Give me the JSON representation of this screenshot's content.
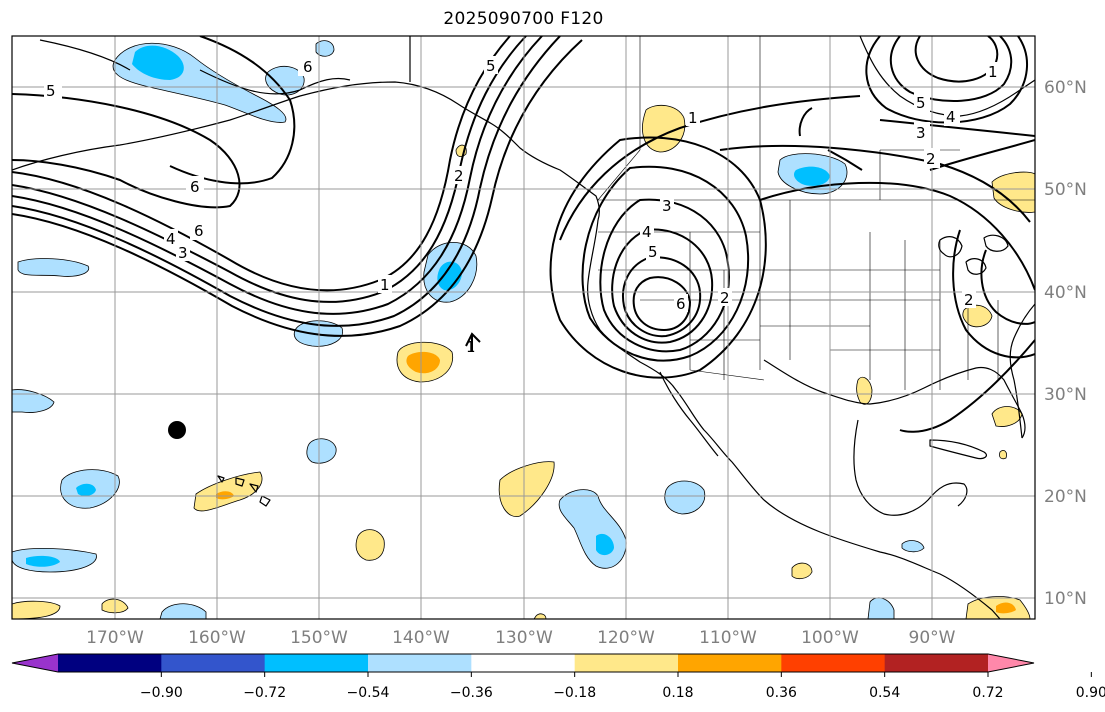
{
  "title": "2025090700 F120",
  "longitude_labels": [
    "170°W",
    "160°W",
    "150°W",
    "140°W",
    "130°W",
    "120°W",
    "110°W",
    "100°W",
    "90°W"
  ],
  "latitude_labels": [
    "60°N",
    "50°N",
    "40°N",
    "30°N",
    "20°N",
    "10°N"
  ],
  "colorbar": {
    "ticks": [
      "−0.90",
      "−0.72",
      "−0.54",
      "−0.36",
      "−0.18",
      "0.18",
      "0.36",
      "0.54",
      "0.72",
      "0.90"
    ],
    "colors": [
      "#9933cc",
      "#000080",
      "#3355cc",
      "#00bfff",
      "#aee0ff",
      "#ffffff",
      "#ffe88a",
      "#ffa500",
      "#ff4000",
      "#b22222",
      "#ff88aa"
    ]
  },
  "contour_labels": [
    "5",
    "6",
    "6",
    "6",
    "4",
    "3",
    "1",
    "2",
    "5",
    "1",
    "1",
    "2",
    "3",
    "4",
    "5",
    "6",
    "2",
    "5",
    "4",
    "3",
    "2",
    "1"
  ],
  "colors": {
    "shade_light_blue": "#aee0ff",
    "shade_blue": "#00bfff",
    "shade_yellow": "#ffe88a",
    "shade_orange": "#ffa500",
    "grid": "#999999",
    "label_gray": "#7f7f7f"
  }
}
